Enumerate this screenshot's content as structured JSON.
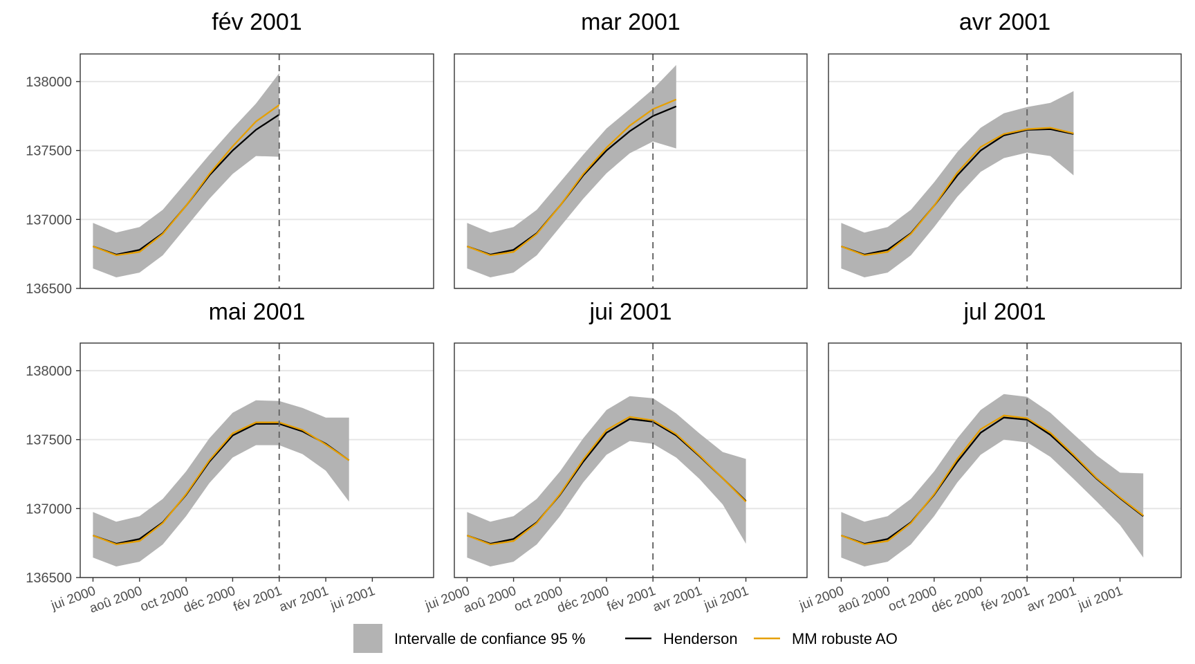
{
  "chart_data": {
    "type": "line",
    "x_ticks": [
      "jui 2000",
      "aoû 2000",
      "oct 2000",
      "déc 2000",
      "fév 2001",
      "avr 2001",
      "jui 2001"
    ],
    "x_tick_positions": [
      "2000-06",
      "2000-08",
      "2000-10",
      "2000-12",
      "2001-02",
      "2001-04",
      "2001-06"
    ],
    "y_ticks": [
      136500,
      137000,
      137500,
      138000
    ],
    "ylim": [
      136500,
      138200
    ],
    "grid": "horizontal",
    "legend_position": "bottom",
    "colors": {
      "henderson": "#000000",
      "robust": "#E69F00",
      "ci": "#b3b3b3",
      "vline": "#666666"
    },
    "legend": [
      {
        "key": "ci",
        "label": "Intervalle de confiance 95 %"
      },
      {
        "key": "henderson",
        "label": "Henderson"
      },
      {
        "key": "robust",
        "label": "MM robuste AO"
      }
    ],
    "panels": [
      {
        "title": "fév 2001",
        "vline": "2001-02",
        "x": [
          "2000-06",
          "2000-07",
          "2000-08",
          "2000-09",
          "2000-10",
          "2000-11",
          "2000-12",
          "2001-01",
          "2001-02"
        ],
        "henderson": [
          136805,
          136745,
          136780,
          136900,
          137100,
          137320,
          137500,
          137650,
          137760
        ],
        "robust": [
          136805,
          136740,
          136765,
          136895,
          137100,
          137330,
          137530,
          137710,
          137830
        ],
        "ci_upper": [
          136975,
          136905,
          136945,
          137070,
          137270,
          137470,
          137660,
          137840,
          138060
        ],
        "ci_lower": [
          136645,
          136580,
          136615,
          136740,
          136945,
          137150,
          137330,
          137460,
          137455
        ]
      },
      {
        "title": "mar 2001",
        "vline": "2001-02",
        "x": [
          "2000-06",
          "2000-07",
          "2000-08",
          "2000-09",
          "2000-10",
          "2000-11",
          "2000-12",
          "2001-01",
          "2001-02",
          "2001-03"
        ],
        "henderson": [
          136805,
          136745,
          136780,
          136900,
          137100,
          137320,
          137500,
          137640,
          137750,
          137820
        ],
        "robust": [
          136805,
          136740,
          136765,
          136895,
          137100,
          137330,
          137520,
          137680,
          137800,
          137870
        ],
        "ci_upper": [
          136975,
          136905,
          136945,
          137070,
          137270,
          137470,
          137660,
          137800,
          137945,
          138120
        ],
        "ci_lower": [
          136645,
          136580,
          136615,
          136740,
          136945,
          137150,
          137335,
          137480,
          137565,
          137515
        ]
      },
      {
        "title": "avr 2001",
        "vline": "2001-02",
        "x": [
          "2000-06",
          "2000-07",
          "2000-08",
          "2000-09",
          "2000-10",
          "2000-11",
          "2000-12",
          "2001-01",
          "2001-02",
          "2001-03",
          "2001-04"
        ],
        "henderson": [
          136805,
          136745,
          136780,
          136900,
          137100,
          137320,
          137500,
          137610,
          137650,
          137655,
          137620
        ],
        "robust": [
          136805,
          136740,
          136765,
          136895,
          137100,
          137340,
          137525,
          137620,
          137655,
          137665,
          137625
        ],
        "ci_upper": [
          136975,
          136905,
          136945,
          137070,
          137270,
          137490,
          137665,
          137770,
          137815,
          137845,
          137930
        ],
        "ci_lower": [
          136645,
          136580,
          136615,
          136740,
          136945,
          137165,
          137345,
          137445,
          137485,
          137460,
          137320
        ]
      },
      {
        "title": "mai 2001",
        "vline": "2001-02",
        "x": [
          "2000-06",
          "2000-07",
          "2000-08",
          "2000-09",
          "2000-10",
          "2000-11",
          "2000-12",
          "2001-01",
          "2001-02",
          "2001-03",
          "2001-04",
          "2001-05"
        ],
        "henderson": [
          136805,
          136745,
          136780,
          136900,
          137100,
          137340,
          137530,
          137615,
          137615,
          137560,
          137470,
          137350
        ],
        "robust": [
          136805,
          136740,
          136765,
          136895,
          137105,
          137350,
          137545,
          137625,
          137625,
          137570,
          137465,
          137350
        ],
        "ci_upper": [
          136975,
          136905,
          136945,
          137070,
          137270,
          137510,
          137695,
          137785,
          137780,
          137730,
          137660,
          137660
        ],
        "ci_lower": [
          136645,
          136580,
          136615,
          136740,
          136945,
          137185,
          137370,
          137460,
          137460,
          137395,
          137275,
          137050
        ]
      },
      {
        "title": "jui 2001",
        "vline": "2001-02",
        "x": [
          "2000-06",
          "2000-07",
          "2000-08",
          "2000-09",
          "2000-10",
          "2000-11",
          "2000-12",
          "2001-01",
          "2001-02",
          "2001-03",
          "2001-04",
          "2001-05",
          "2001-06"
        ],
        "henderson": [
          136805,
          136745,
          136780,
          136900,
          137100,
          137340,
          137550,
          137650,
          137630,
          137530,
          137380,
          137220,
          137055
        ],
        "robust": [
          136805,
          136740,
          136765,
          136895,
          137105,
          137355,
          137570,
          137665,
          137640,
          137540,
          137385,
          137220,
          137050
        ],
        "ci_upper": [
          136975,
          136905,
          136945,
          137070,
          137270,
          137510,
          137715,
          137815,
          137800,
          137690,
          137545,
          137410,
          137360
        ],
        "ci_lower": [
          136645,
          136580,
          136615,
          136740,
          136945,
          137190,
          137390,
          137490,
          137470,
          137370,
          137215,
          137030,
          136745
        ]
      },
      {
        "title": "jul 2001",
        "vline": "2001-02",
        "x": [
          "2000-06",
          "2000-07",
          "2000-08",
          "2000-09",
          "2000-10",
          "2000-11",
          "2000-12",
          "2001-01",
          "2001-02",
          "2001-03",
          "2001-04",
          "2001-05",
          "2001-06",
          "2001-07"
        ],
        "henderson": [
          136805,
          136745,
          136780,
          136900,
          137100,
          137340,
          137550,
          137660,
          137645,
          137535,
          137380,
          137215,
          137075,
          136945
        ],
        "robust": [
          136805,
          136740,
          136765,
          136895,
          137105,
          137360,
          137575,
          137675,
          137655,
          137550,
          137390,
          137220,
          137080,
          136950
        ],
        "ci_upper": [
          136975,
          136905,
          136945,
          137070,
          137270,
          137510,
          137715,
          137830,
          137810,
          137695,
          137540,
          137385,
          137260,
          137255
        ],
        "ci_lower": [
          136645,
          136580,
          136615,
          136740,
          136945,
          137190,
          137390,
          137500,
          137480,
          137375,
          137215,
          137050,
          136880,
          136645
        ]
      }
    ]
  }
}
